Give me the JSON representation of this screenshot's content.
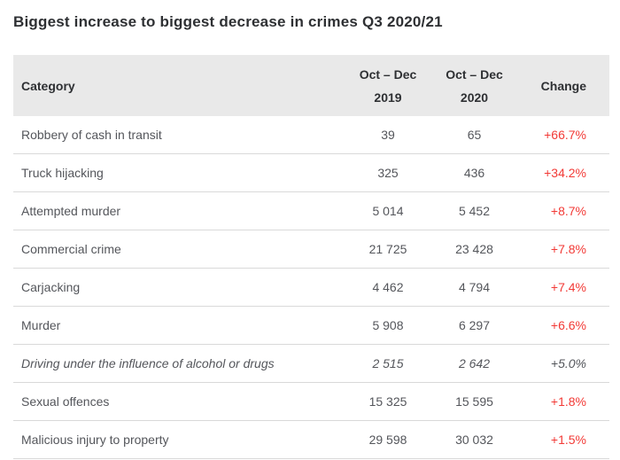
{
  "title": "Biggest increase to biggest decrease in crimes Q3 2020/21",
  "table": {
    "headers": {
      "category": "Category",
      "col_2019_line1": "Oct – Dec",
      "col_2019_line2": "2019",
      "col_2020_line1": "Oct – Dec",
      "col_2020_line2": "2020",
      "change": "Change"
    },
    "rows": [
      {
        "category": "Robbery of cash in transit",
        "oct_dec_2019": "39",
        "oct_dec_2020": "65",
        "change": "+66.7%",
        "italic": false
      },
      {
        "category": "Truck hijacking",
        "oct_dec_2019": "325",
        "oct_dec_2020": "436",
        "change": "+34.2%",
        "italic": false
      },
      {
        "category": "Attempted murder",
        "oct_dec_2019": "5 014",
        "oct_dec_2020": "5 452",
        "change": "+8.7%",
        "italic": false
      },
      {
        "category": "Commercial crime",
        "oct_dec_2019": "21 725",
        "oct_dec_2020": "23 428",
        "change": "+7.8%",
        "italic": false
      },
      {
        "category": "Carjacking",
        "oct_dec_2019": "4 462",
        "oct_dec_2020": "4 794",
        "change": "+7.4%",
        "italic": false
      },
      {
        "category": "Murder",
        "oct_dec_2019": "5 908",
        "oct_dec_2020": "6 297",
        "change": "+6.6%",
        "italic": false
      },
      {
        "category": "Driving under the influence of alcohol or drugs",
        "oct_dec_2019": "2 515",
        "oct_dec_2020": "2 642",
        "change": "+5.0%",
        "italic": true
      },
      {
        "category": "Sexual offences",
        "oct_dec_2019": "15 325",
        "oct_dec_2020": "15 595",
        "change": "+1.8%",
        "italic": false
      },
      {
        "category": "Malicious injury to property",
        "oct_dec_2019": "29 598",
        "oct_dec_2020": "30 032",
        "change": "+1.5%",
        "italic": false
      }
    ]
  },
  "colors": {
    "change_positive": "#f23a36",
    "header_bg": "#e9e9e9",
    "row_border": "#d9d9d9",
    "body_text": "#54565b",
    "heading_text": "#2e3033"
  },
  "chart_data": {
    "type": "table",
    "title": "Biggest increase to biggest decrease in crimes Q3 2020/21",
    "columns": [
      "Category",
      "Oct – Dec 2019",
      "Oct – Dec 2020",
      "Change"
    ],
    "categories": [
      "Robbery of cash in transit",
      "Truck hijacking",
      "Attempted murder",
      "Commercial crime",
      "Carjacking",
      "Murder",
      "Driving under the influence of alcohol or drugs",
      "Sexual offences",
      "Malicious injury to property"
    ],
    "series": [
      {
        "name": "Oct – Dec 2019",
        "values": [
          39,
          325,
          5014,
          21725,
          4462,
          5908,
          2515,
          15325,
          29598
        ]
      },
      {
        "name": "Oct – Dec 2020",
        "values": [
          65,
          436,
          5452,
          23428,
          4794,
          6297,
          2642,
          15595,
          30032
        ]
      },
      {
        "name": "Change %",
        "values": [
          66.7,
          34.2,
          8.7,
          7.8,
          7.4,
          6.6,
          5.0,
          1.8,
          1.5
        ]
      }
    ]
  }
}
